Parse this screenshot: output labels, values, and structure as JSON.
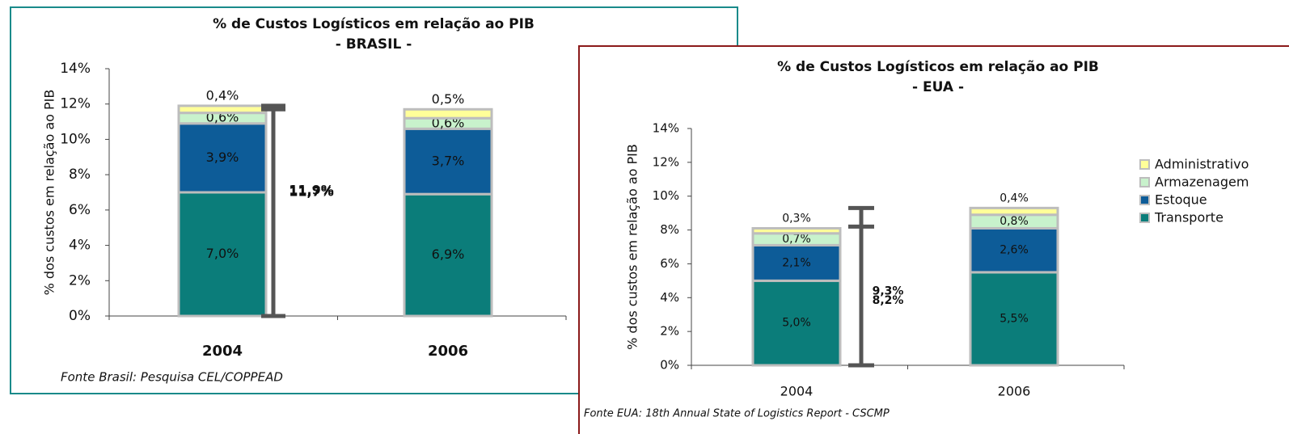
{
  "chart_data": [
    {
      "type": "stacked_bar",
      "title": "% de Custos Logísticos em relação ao PIB",
      "subtitle": "- BRASIL -",
      "y_label": "% dos custos em relação ao PIB",
      "source": "Fonte Brasil: Pesquisa CEL/COPPEAD",
      "categories": [
        "2004",
        "2006"
      ],
      "series": [
        {
          "color": "#0b7d7a",
          "values": [
            7.0,
            6.9
          ],
          "value_labels": [
            "7,0%",
            "6,9%"
          ]
        },
        {
          "color": "#0d5c98",
          "values": [
            3.9,
            3.7
          ],
          "value_labels": [
            "3,9%",
            "3,7%"
          ]
        },
        {
          "color": "#c8f2cc",
          "values": [
            0.6,
            0.6
          ],
          "value_labels": [
            "0,6%",
            "0,6%"
          ]
        },
        {
          "color": "#ffff99",
          "values": [
            0.4,
            0.5
          ],
          "value_labels": [
            "0,4%",
            "0,5%"
          ]
        }
      ],
      "totals": [
        11.9,
        11.7
      ],
      "total_labels": [
        "11,9%",
        "11,7%"
      ],
      "ylim": [
        0,
        14
      ],
      "yticks": [
        {
          "value": 0,
          "label": "0%"
        },
        {
          "value": 2,
          "label": "2%"
        },
        {
          "value": 4,
          "label": "4%"
        },
        {
          "value": 6,
          "label": "6%"
        },
        {
          "value": 8,
          "label": "8%"
        },
        {
          "value": 10,
          "label": "10%"
        },
        {
          "value": 12,
          "label": "12%"
        },
        {
          "value": 14,
          "label": "14%"
        }
      ]
    },
    {
      "type": "stacked_bar",
      "title": "% de Custos Logísticos em relação ao PIB",
      "subtitle": "- EUA -",
      "y_label": "% dos custos em relação ao PIB",
      "source": "Fonte EUA: 18th Annual State of Logistics Report - CSCMP",
      "categories": [
        "2004",
        "2006"
      ],
      "series": [
        {
          "name": "Transporte",
          "color": "#0b7d7a",
          "values": [
            5.0,
            5.5
          ],
          "value_labels": [
            "5,0%",
            "5,5%"
          ]
        },
        {
          "name": "Estoque",
          "color": "#0d5c98",
          "values": [
            2.1,
            2.6
          ],
          "value_labels": [
            "2,1%",
            "2,6%"
          ]
        },
        {
          "name": "Armazenagem",
          "color": "#c8f2cc",
          "values": [
            0.7,
            0.8
          ],
          "value_labels": [
            "0,7%",
            "0,8%"
          ]
        },
        {
          "name": "Administrativo",
          "color": "#ffff99",
          "values": [
            0.3,
            0.4
          ],
          "value_labels": [
            "0,3%",
            "0,4%"
          ]
        }
      ],
      "totals": [
        8.2,
        9.3
      ],
      "total_labels": [
        "8,2%",
        "9,3%"
      ],
      "ylim": [
        0,
        14
      ],
      "yticks": [
        {
          "value": 0,
          "label": "0%"
        },
        {
          "value": 2,
          "label": "2%"
        },
        {
          "value": 4,
          "label": "4%"
        },
        {
          "value": 6,
          "label": "6%"
        },
        {
          "value": 8,
          "label": "8%"
        },
        {
          "value": 10,
          "label": "10%"
        },
        {
          "value": 12,
          "label": "12%"
        },
        {
          "value": 14,
          "label": "14%"
        }
      ],
      "legend": "right"
    }
  ]
}
